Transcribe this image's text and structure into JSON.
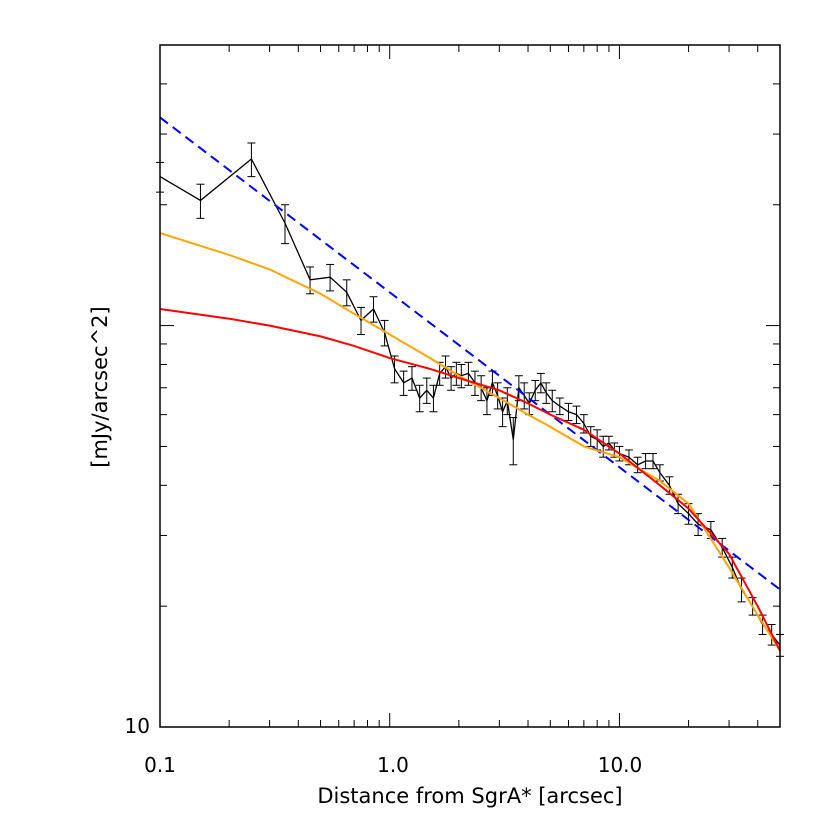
{
  "chart_data": {
    "type": "line",
    "title": "",
    "xlabel": "Distance from SgrA* [arcsec]",
    "ylabel": "[mJy/arcsec^2]",
    "x_scale": "log",
    "y_scale": "log",
    "xlim": [
      0.1,
      50
    ],
    "ylim": [
      10,
      500
    ],
    "x_tick_labels": [
      "0.1",
      "1.0",
      "10.0"
    ],
    "y_tick_labels": [
      "10"
    ],
    "grid": false,
    "legend": "none",
    "series": [
      {
        "style": "line with error bars",
        "color": "#000000",
        "x": [
          0.1,
          0.15,
          0.25,
          0.35,
          0.45,
          0.55,
          0.65,
          0.75,
          0.85,
          0.95,
          1.05,
          1.15,
          1.25,
          1.35,
          1.45,
          1.55,
          1.65,
          1.75,
          1.85,
          1.95,
          2.05,
          2.2,
          2.35,
          2.5,
          2.65,
          2.8,
          2.95,
          3.1,
          3.25,
          3.45,
          3.65,
          3.85,
          4.05,
          4.3,
          4.55,
          4.8,
          5.1,
          5.5,
          6.0,
          6.5,
          7.0,
          7.5,
          8.0,
          8.5,
          9.0,
          9.5,
          10.0,
          11.0,
          12.0,
          13.0,
          14.0,
          15.0,
          16.5,
          18.0,
          20.0,
          22.0,
          25.0,
          28.0,
          31.0,
          34.0,
          38.0,
          42.0,
          46.0,
          50.0
        ],
        "y": [
          235,
          205,
          260,
          180,
          130,
          132,
          121,
          103,
          110,
          96,
          78,
          72,
          74,
          66,
          69,
          66,
          76,
          79,
          74,
          76,
          75,
          76,
          72,
          70,
          65,
          72,
          67,
          61,
          65,
          52,
          70,
          67,
          64,
          69,
          72,
          68,
          65,
          63,
          61,
          60,
          57,
          53,
          52,
          50,
          51,
          49,
          48,
          47,
          45,
          46,
          46,
          43,
          40,
          36,
          34,
          32,
          31,
          28,
          25,
          22,
          20,
          18,
          17,
          16
        ],
        "err": [
          20,
          20,
          25,
          20,
          10,
          10,
          9,
          8,
          8,
          7,
          6,
          5,
          5,
          5,
          5,
          5,
          5,
          5,
          5,
          5,
          5,
          5,
          5,
          5,
          5,
          5,
          5,
          5,
          5,
          7,
          5,
          5,
          4,
          4,
          4,
          4,
          4,
          3,
          3,
          3,
          3,
          3,
          3,
          3,
          2,
          2,
          2,
          2,
          2,
          2,
          2,
          2,
          2,
          2,
          2,
          2,
          1.5,
          1.5,
          1.5,
          1.5,
          1,
          1,
          1,
          1
        ]
      },
      {
        "style": "dashed line",
        "color": "#0000ff",
        "x": [
          0.1,
          50
        ],
        "y": [
          330,
          22
        ]
      },
      {
        "style": "solid line",
        "color": "#ffa500",
        "x": [
          0.1,
          0.2,
          0.3,
          0.5,
          0.7,
          1.0,
          1.5,
          2.0,
          3.0,
          4.0,
          5.0,
          7.0,
          10.0,
          15.0,
          20.0,
          30.0,
          40.0,
          50.0
        ],
        "y": [
          170,
          150,
          138,
          120,
          107,
          95,
          83,
          75,
          66,
          60,
          56,
          50,
          47,
          41,
          36,
          25,
          19,
          15.5
        ]
      },
      {
        "style": "solid line",
        "color": "#ff0000",
        "x": [
          0.1,
          0.2,
          0.3,
          0.5,
          0.7,
          1.0,
          1.5,
          2.0,
          3.0,
          4.0,
          5.0,
          7.0,
          10.0,
          15.0,
          20.0,
          30.0,
          40.0,
          50.0
        ],
        "y": [
          110,
          104,
          100,
          94,
          89,
          83,
          78,
          74,
          69,
          64,
          60,
          55,
          48,
          40,
          35,
          27,
          20,
          15.5
        ]
      }
    ]
  }
}
